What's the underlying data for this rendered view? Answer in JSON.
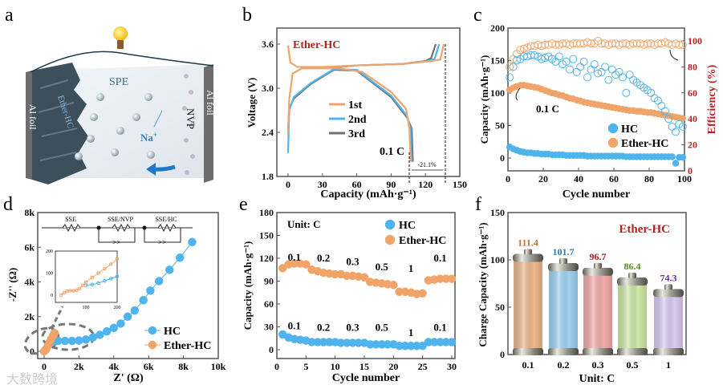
{
  "panel_labels": [
    "a",
    "b",
    "c",
    "d",
    "e",
    "f"
  ],
  "watermark": "大数跨境",
  "colors": {
    "hc": "#4fb3ee",
    "ether": "#f0a46a",
    "gray": "#707070",
    "red": "#b22222"
  },
  "schematic": {
    "spe": "SPE",
    "ether_hc": "Ether-HC",
    "al_foil_left": "Al foil",
    "al_foil_right": "Al foil",
    "nvp": "NVP",
    "na_ion": "Na",
    "na_sup": "+"
  },
  "chart_data": [
    {
      "id": "b",
      "type": "line",
      "title": "Ether-HC",
      "xlabel": "Capacity (mAh·g⁻¹)",
      "ylabel": "Voltage (V)",
      "xlim": [
        0,
        150
      ],
      "ylim": [
        1.8,
        3.75
      ],
      "xticks": [
        0,
        30,
        60,
        90,
        120,
        150
      ],
      "yticks": [
        1.8,
        2.4,
        3.0,
        3.6
      ],
      "annotation": "0.1 C",
      "loss_label": "-21.1%",
      "series": [
        {
          "name": "1st",
          "color": "#f0a46a",
          "charge": [
            [
              0,
              3.58
            ],
            [
              2,
              3.35
            ],
            [
              8,
              3.29
            ],
            [
              30,
              3.29
            ],
            [
              60,
              3.31
            ],
            [
              100,
              3.33
            ],
            [
              125,
              3.37
            ],
            [
              133,
              3.39
            ],
            [
              136,
              3.6
            ]
          ],
          "discharge": [
            [
              0,
              2.38
            ],
            [
              1,
              2.85
            ],
            [
              4,
              3.2
            ],
            [
              12,
              3.27
            ],
            [
              45,
              3.27
            ],
            [
              65,
              3.22
            ],
            [
              90,
              2.95
            ],
            [
              103,
              2.72
            ],
            [
              106,
              2.45
            ],
            [
              107,
              2.0
            ]
          ]
        },
        {
          "name": "2nd",
          "color": "#4fb3ee",
          "charge": [
            [
              36,
              3.28
            ],
            [
              60,
              3.31
            ],
            [
              100,
              3.33
            ],
            [
              122,
              3.37
            ],
            [
              128,
              3.4
            ],
            [
              132,
              3.6
            ]
          ],
          "discharge": [
            [
              0,
              2.12
            ],
            [
              1,
              2.7
            ],
            [
              5,
              2.88
            ],
            [
              20,
              3.07
            ],
            [
              40,
              3.26
            ],
            [
              60,
              3.25
            ],
            [
              90,
              2.9
            ],
            [
              104,
              2.62
            ],
            [
              107,
              2.45
            ],
            [
              108,
              2.0
            ]
          ]
        },
        {
          "name": "3rd",
          "color": "#707070",
          "charge": [
            [
              38,
              3.28
            ],
            [
              60,
              3.31
            ],
            [
              100,
              3.33
            ],
            [
              120,
              3.37
            ],
            [
              125,
              3.41
            ],
            [
              129,
              3.6
            ]
          ],
          "discharge": [
            [
              0,
              2.45
            ],
            [
              1,
              2.72
            ],
            [
              5,
              2.86
            ],
            [
              20,
              3.06
            ],
            [
              40,
              3.25
            ],
            [
              60,
              3.24
            ],
            [
              90,
              2.88
            ],
            [
              104,
              2.6
            ],
            [
              108,
              2.45
            ],
            [
              109,
              2.0
            ]
          ]
        }
      ]
    },
    {
      "id": "c",
      "type": "scatter",
      "xlabel": "Cycle number",
      "ylabel": "Capacity (mAh·g⁻¹)",
      "y2label": "Efficiency (%)",
      "xlim": [
        0,
        100
      ],
      "ylim": [
        -20,
        200
      ],
      "y2lim": [
        0,
        110
      ],
      "xticks": [
        0,
        20,
        40,
        60,
        80,
        100
      ],
      "yticks": [
        0,
        50,
        100,
        150,
        200
      ],
      "y2ticks": [
        0,
        20,
        40,
        60,
        80,
        100
      ],
      "annotation": "0.1 C",
      "x_start": 1,
      "x_step": 2,
      "legend": [
        "HC",
        "Ether-HC"
      ],
      "series": [
        {
          "name": "Ether-HC capacity",
          "axis": "left",
          "filled": true,
          "color": "#f0a46a",
          "values": [
            105,
            108,
            110,
            112,
            112,
            111,
            110,
            109,
            108,
            106,
            104,
            102,
            100,
            99,
            97,
            96,
            94,
            92,
            91,
            89,
            88,
            86,
            85,
            84,
            83,
            82,
            81,
            80,
            79,
            78,
            77,
            76,
            75,
            74,
            73,
            73,
            72,
            72,
            71,
            70,
            70,
            69,
            68,
            67,
            66,
            65,
            64,
            63,
            62,
            61
          ]
        },
        {
          "name": "HC capacity",
          "axis": "left",
          "filled": true,
          "color": "#4fb3ee",
          "values": [
            17,
            14,
            12,
            10,
            9,
            8,
            8,
            7,
            7,
            6,
            6,
            6,
            5,
            5,
            5,
            5,
            4,
            4,
            4,
            4,
            4,
            4,
            3,
            3,
            3,
            3,
            3,
            3,
            3,
            3,
            3,
            3,
            3,
            2,
            2,
            2,
            2,
            2,
            2,
            2,
            2,
            2,
            2,
            2,
            2,
            2,
            2,
            -8,
            1,
            1
          ]
        },
        {
          "name": "Ether-HC efficiency",
          "axis": "right",
          "filled": false,
          "color": "#f0a46a",
          "values": [
            80,
            86,
            90,
            93,
            94,
            95,
            96,
            96,
            97,
            96,
            97,
            97,
            98,
            97,
            97,
            98,
            98,
            97,
            98,
            98,
            98,
            98,
            99,
            98,
            98,
            100,
            98,
            98,
            97,
            98,
            98,
            97,
            98,
            98,
            97,
            98,
            98,
            98,
            97,
            98,
            98,
            97,
            98,
            98,
            99,
            98,
            97,
            98,
            97,
            97
          ]
        },
        {
          "name": "HC efficiency",
          "axis": "right",
          "filled": false,
          "color": "#4fb3ee",
          "values": [
            72,
            80,
            85,
            86,
            88,
            88,
            89,
            89,
            88,
            86,
            87,
            88,
            86,
            84,
            88,
            82,
            84,
            78,
            86,
            76,
            80,
            84,
            72,
            78,
            82,
            75,
            76,
            80,
            70,
            78,
            74,
            76,
            72,
            60,
            74,
            70,
            68,
            66,
            64,
            62,
            60,
            56,
            54,
            50,
            46,
            40,
            34,
            30,
            36,
            34
          ]
        }
      ]
    },
    {
      "id": "d",
      "type": "scatter",
      "xlabel": "Z' (Ω)",
      "ylabel": "-Z'' (Ω)",
      "xlim": [
        -0.4,
        10
      ],
      "ylim": [
        -0.4,
        8
      ],
      "xticks": [
        "0",
        "2k",
        "4k",
        "6k",
        "8k",
        "10k"
      ],
      "yticks": [
        "0",
        "2k",
        "4k",
        "6k",
        "8k"
      ],
      "circuit": [
        "SSE",
        "SSE/NVP",
        "SSE/HC"
      ],
      "legend": [
        "HC",
        "Ether-HC"
      ],
      "series": [
        {
          "name": "HC",
          "color": "#4fb3ee",
          "unit": "kΩ",
          "points": [
            [
              0.1,
              0.1
            ],
            [
              0.3,
              0.4
            ],
            [
              0.5,
              0.55
            ],
            [
              0.8,
              0.6
            ],
            [
              1.2,
              0.6
            ],
            [
              1.6,
              0.6
            ],
            [
              2,
              0.62
            ],
            [
              2.4,
              0.68
            ],
            [
              2.8,
              0.8
            ],
            [
              3.2,
              0.95
            ],
            [
              3.6,
              1.15
            ],
            [
              4,
              1.35
            ],
            [
              4.4,
              1.6
            ],
            [
              4.8,
              2
            ],
            [
              5.2,
              2.35
            ],
            [
              5.7,
              2.95
            ],
            [
              6.1,
              3.5
            ],
            [
              6.6,
              4.05
            ],
            [
              7.2,
              4.7
            ],
            [
              7.8,
              5.4
            ],
            [
              8.5,
              6.3
            ]
          ]
        },
        {
          "name": "Ether-HC",
          "color": "#f0a46a",
          "unit": "kΩ",
          "points": [
            [
              0,
              0
            ],
            [
              0.1,
              0.1
            ],
            [
              0.2,
              0.3
            ],
            [
              0.3,
              0.5
            ],
            [
              0.4,
              0.7
            ],
            [
              0.5,
              0.9
            ],
            [
              0.6,
              1.05
            ]
          ]
        }
      ],
      "inset": {
        "xlim": [
          0,
          200
        ],
        "ylim": [
          -20,
          200
        ],
        "xticks": [
          100,
          200
        ],
        "yticks": [
          0,
          100,
          200
        ],
        "series": [
          {
            "name": "HC",
            "color": "#4fb3ee",
            "points": [
              [
                100,
                45
              ],
              [
                120,
                48
              ],
              [
                140,
                55
              ],
              [
                160,
                65
              ],
              [
                180,
                75
              ],
              [
                200,
                85
              ]
            ]
          },
          {
            "name": "Ether-HC",
            "color": "#f0a46a",
            "points": [
              [
                20,
                0
              ],
              [
                30,
                10
              ],
              [
                40,
                18
              ],
              [
                50,
                20
              ],
              [
                60,
                20
              ],
              [
                70,
                22
              ],
              [
                80,
                30
              ],
              [
                90,
                45
              ],
              [
                100,
                58
              ],
              [
                120,
                80
              ],
              [
                140,
                100
              ],
              [
                160,
                120
              ],
              [
                180,
                140
              ],
              [
                200,
                165
              ]
            ]
          }
        ]
      }
    },
    {
      "id": "e",
      "type": "scatter",
      "xlabel": "Cycle number",
      "ylabel": "Capacity (mAh·g⁻¹)",
      "xlim": [
        0,
        31
      ],
      "ylim": [
        -15,
        180
      ],
      "xticks": [
        0,
        5,
        10,
        15,
        20,
        25,
        30
      ],
      "yticks": [
        0,
        30,
        60,
        90,
        120,
        150,
        180
      ],
      "unit_label": "Unit: C",
      "legend": [
        "HC",
        "Ether-HC"
      ],
      "rates": [
        "0.1",
        "0.2",
        "0.3",
        "0.5",
        "1",
        "0.1"
      ],
      "series": [
        {
          "name": "Ether-HC",
          "color": "#f0a46a",
          "values": [
            107,
            112,
            113,
            113,
            112,
            105,
            103,
            101,
            100,
            99,
            99,
            97,
            97,
            96,
            95,
            89,
            88,
            87,
            86,
            85,
            76,
            76,
            75,
            73,
            74,
            91,
            92,
            93,
            93,
            93
          ]
        },
        {
          "name": "HC",
          "color": "#4fb3ee",
          "values": [
            20,
            16,
            14,
            13,
            12,
            10,
            10,
            10,
            10,
            10,
            9,
            9,
            9,
            9,
            9,
            7,
            7,
            7,
            7,
            7,
            5,
            5,
            5,
            5,
            5,
            10,
            10,
            10,
            10,
            10
          ]
        }
      ]
    },
    {
      "id": "f",
      "type": "bar",
      "title": "Ether-HC",
      "xlabel": "Unit: C",
      "ylabel": "Charge Capacity (mAh·g⁻¹)",
      "ylim": [
        0,
        150
      ],
      "yticks": [
        0,
        50,
        100,
        150
      ],
      "categories": [
        "0.1",
        "0.2",
        "0.3",
        "0.5",
        "1"
      ],
      "values": [
        111.4,
        101.7,
        96.7,
        86.4,
        74.3
      ],
      "bar_colors": [
        "#efb98e",
        "#9fd3f2",
        "#f4acac",
        "#cfeaa8",
        "#dccbf3"
      ],
      "label_colors": [
        "#c0703a",
        "#2a7ab0",
        "#a02020",
        "#5a8a20",
        "#6030a0"
      ]
    }
  ]
}
